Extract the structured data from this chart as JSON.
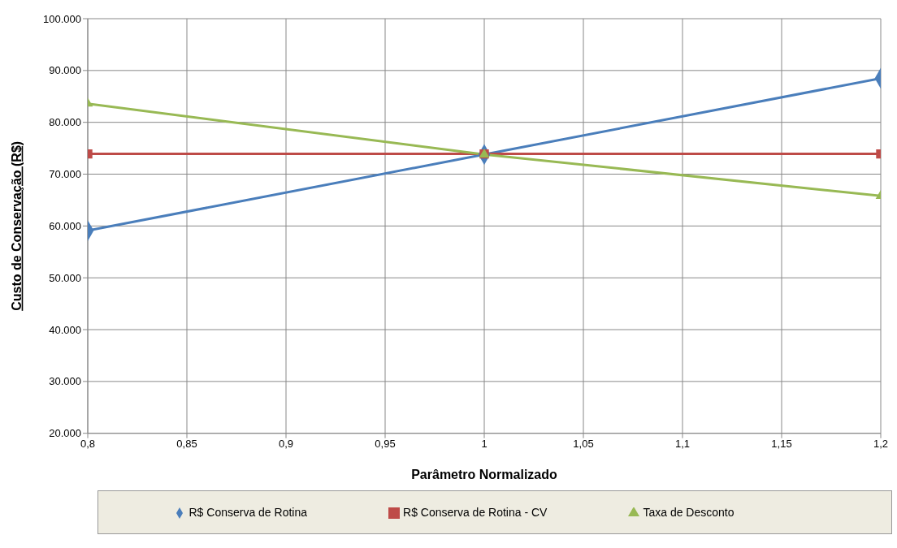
{
  "chart_data": {
    "type": "line",
    "xlabel": "Parâmetro Normalizado",
    "ylabel": "Custo de Conservação (R$)",
    "x": [
      0.8,
      1,
      1.2
    ],
    "series": [
      {
        "name": "R$ Conserva de Rotina",
        "color": "#4a7ebb",
        "marker": "diamond",
        "values": [
          59100,
          73800,
          88500
        ]
      },
      {
        "name": "R$ Conserva de Rotina - CV",
        "color": "#be4b48",
        "marker": "square",
        "values": [
          73900,
          73900,
          73900
        ]
      },
      {
        "name": "Taxa de Desconto",
        "color": "#98b954",
        "marker": "triangle",
        "values": [
          83600,
          73800,
          65800
        ]
      }
    ],
    "xlim": [
      0.8,
      1.2
    ],
    "xticks": [
      {
        "value": 0.8,
        "label": "0,8"
      },
      {
        "value": 0.85,
        "label": "0,85"
      },
      {
        "value": 0.9,
        "label": "0,9"
      },
      {
        "value": 0.95,
        "label": "0,95"
      },
      1,
      {
        "value": 1.05,
        "label": "1,05"
      },
      {
        "value": 1.1,
        "label": "1,1"
      },
      {
        "value": 1.15,
        "label": "1,15"
      },
      {
        "value": 1.2,
        "label": "1,2"
      }
    ],
    "ylim": [
      20000,
      100000
    ],
    "yticks": [
      {
        "value": 20000,
        "label": "20.000"
      },
      {
        "value": 30000,
        "label": "30.000"
      },
      {
        "value": 40000,
        "label": "40.000"
      },
      {
        "value": 50000,
        "label": "50.000"
      },
      {
        "value": 60000,
        "label": "60.000"
      },
      {
        "value": 70000,
        "label": "70.000"
      },
      {
        "value": 80000,
        "label": "80.000"
      },
      {
        "value": 90000,
        "label": "90.000"
      },
      {
        "value": 100000,
        "label": "100.000"
      }
    ],
    "grid": true,
    "legend": "bottom",
    "line_style": "solid"
  }
}
